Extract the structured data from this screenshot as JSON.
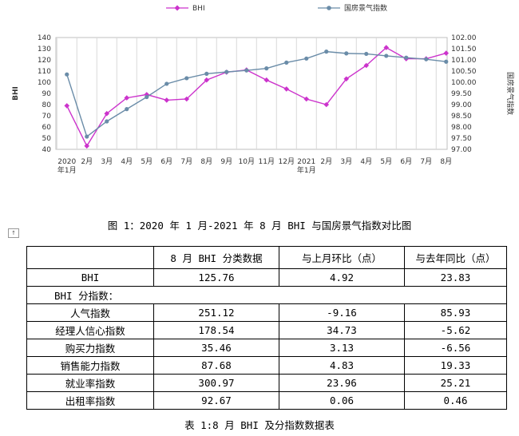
{
  "chart_data": {
    "type": "line",
    "title": "",
    "categories": [
      [
        "2020",
        "年1月"
      ],
      [
        "2月"
      ],
      [
        "3月"
      ],
      [
        "4月"
      ],
      [
        "5月"
      ],
      [
        "6月"
      ],
      [
        "7月"
      ],
      [
        "8月"
      ],
      [
        "9月"
      ],
      [
        "10月"
      ],
      [
        "11月"
      ],
      [
        "12月"
      ],
      [
        "2021",
        "年1月"
      ],
      [
        "2月"
      ],
      [
        "3月"
      ],
      [
        "4月"
      ],
      [
        "5月"
      ],
      [
        "6月"
      ],
      [
        "7月"
      ],
      [
        "8月"
      ]
    ],
    "series": [
      {
        "name": "BHI",
        "axis": "left",
        "color": "#cc33cc",
        "marker": "diamond",
        "values": [
          79,
          43,
          72,
          86,
          89,
          84,
          85,
          102,
          109,
          111,
          102,
          94,
          85,
          80,
          103,
          115,
          131,
          121,
          121,
          126
        ]
      },
      {
        "name": "国房景气指数",
        "axis": "right",
        "color": "#6a8ca8",
        "marker": "circle",
        "values": [
          100.35,
          97.57,
          98.25,
          98.8,
          99.34,
          99.93,
          100.18,
          100.38,
          100.46,
          100.53,
          100.62,
          100.88,
          101.06,
          101.37,
          101.29,
          101.27,
          101.18,
          101.1,
          101.03,
          100.92
        ]
      }
    ],
    "ylabel": "BHI",
    "y2label": "国房景气指数",
    "ylim": [
      40,
      140
    ],
    "yticks": [
      40,
      50,
      60,
      70,
      80,
      90,
      100,
      110,
      120,
      130,
      140
    ],
    "y2lim": [
      97.0,
      102.0
    ],
    "y2ticks": [
      "97.00",
      "97.50",
      "98.00",
      "98.50",
      "99.00",
      "99.50",
      "100.00",
      "100.50",
      "101.00",
      "101.50",
      "102.00"
    ],
    "grid": "vertical",
    "legend": "top"
  },
  "figure_caption": "图 1：2020 年 1 月-2021 年 8 月 BHI 与国房景气指数对比图",
  "table": {
    "headers": [
      "",
      "8 月 BHI 分类数据",
      "与上月环比（点）",
      "与去年同比（点）"
    ],
    "bhi_row": {
      "label": "BHI",
      "values": [
        "125.76",
        "4.92",
        "23.83"
      ]
    },
    "subindex_heading": "BHI 分指数：",
    "rows": [
      {
        "label": "人气指数",
        "values": [
          "251.12",
          "-9.16",
          "85.93"
        ]
      },
      {
        "label": "经理人信心指数",
        "values": [
          "178.54",
          "34.73",
          "-5.62"
        ]
      },
      {
        "label": "购买力指数",
        "values": [
          "35.46",
          "3.13",
          "-6.56"
        ]
      },
      {
        "label": "销售能力指数",
        "values": [
          "87.68",
          "4.83",
          "19.33"
        ]
      },
      {
        "label": "就业率指数",
        "values": [
          "300.97",
          "23.96",
          "25.21"
        ]
      },
      {
        "label": "出租率指数",
        "values": [
          "92.67",
          "0.06",
          "0.46"
        ]
      }
    ]
  },
  "table_caption": "表 1:8 月 BHI 及分指数数据表"
}
